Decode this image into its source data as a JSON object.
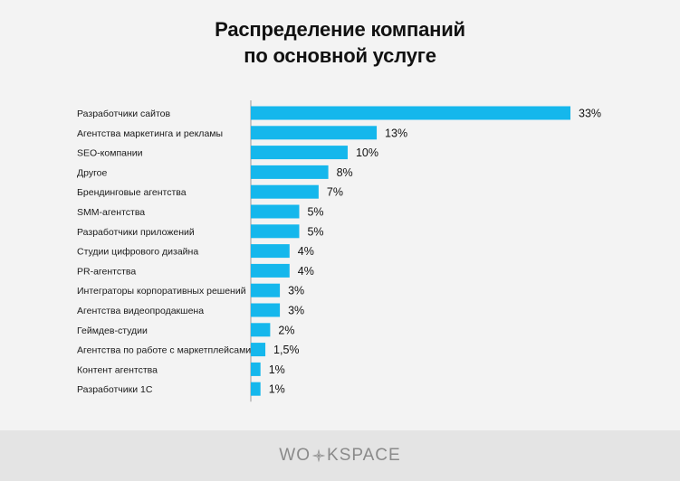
{
  "page": {
    "title_line1": "Распределение компаний",
    "title_line2": "по основной услуге"
  },
  "chart_data": {
    "type": "bar",
    "orientation": "horizontal",
    "categories": [
      "Разработчики сайтов",
      "Агентства маркетинга и рекламы",
      "SEO-компании",
      "Другое",
      "Брендинговые агентства",
      "SMM-агентства",
      "Разработчики приложений",
      "Студии цифрового дизайна",
      "PR-агентства",
      "Интеграторы корпоративных решений",
      "Агентства видеопродакшена",
      "Геймдев-студии",
      "Агентства по работе с маркетплейсами",
      "Контент агентства",
      "Разработчики 1С"
    ],
    "values": [
      33,
      13,
      10,
      8,
      7,
      5,
      5,
      4,
      4,
      3,
      3,
      2,
      1.5,
      1,
      1
    ],
    "value_labels": [
      "33%",
      "13%",
      "10%",
      "8%",
      "7%",
      "5%",
      "5%",
      "4%",
      "4%",
      "3%",
      "3%",
      "2%",
      "1,5%",
      "1%",
      "1%"
    ],
    "bar_color": "#15b7ec",
    "axis_color": "#9a9a9a",
    "xlim": [
      0,
      33
    ],
    "grid": false,
    "legend": "none"
  },
  "footer": {
    "logo_left": "WO",
    "logo_right": "KSPACE",
    "logo_icon": "star-icon"
  }
}
